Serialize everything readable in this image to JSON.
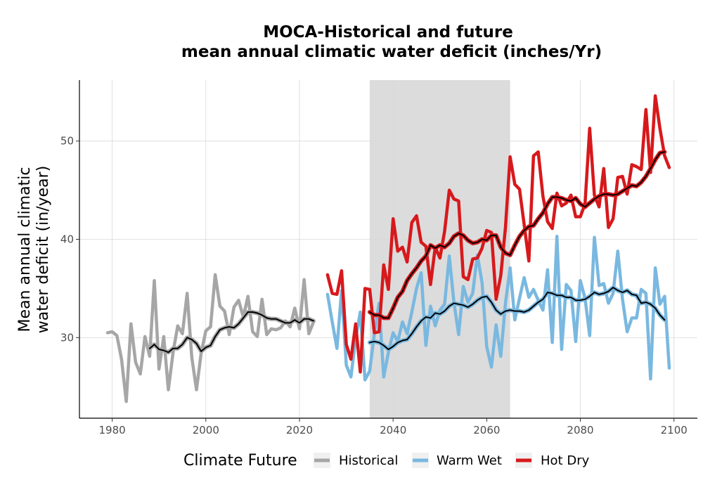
{
  "chart_data": {
    "type": "line",
    "title": "MOCA-Historical and future",
    "subtitle": "mean annual climatic water deficit (inches/Yr)",
    "xlabel": "",
    "ylabel_line1": "Mean annual climatic",
    "ylabel_line2": "water deficit (in/year)",
    "xlim": [
      1973,
      2105
    ],
    "ylim": [
      21.8,
      56.2
    ],
    "x_ticks": [
      1980,
      2000,
      2020,
      2040,
      2060,
      2080,
      2100
    ],
    "y_ticks": [
      30,
      40,
      50
    ],
    "grid": true,
    "shaded_period": [
      2035,
      2065
    ],
    "shaded_color": "#dcdcdc",
    "legend": {
      "title": "Climate Future",
      "position": "bottom",
      "entries": [
        "Historical",
        "Warm Wet",
        "Hot Dry"
      ]
    },
    "series": [
      {
        "name": "Historical",
        "color": "#a6a6a6",
        "x_start": 1979,
        "values": [
          30.5,
          30.6,
          30.2,
          27.8,
          23.5,
          31.4,
          27.5,
          26.3,
          30.1,
          28.1,
          35.8,
          26.8,
          30.1,
          24.7,
          28.5,
          31.2,
          30.4,
          34.5,
          28.0,
          24.7,
          28.4,
          30.7,
          31.1,
          36.4,
          33.2,
          32.7,
          30.3,
          33.1,
          33.8,
          32.1,
          34.2,
          30.6,
          30.1,
          33.9,
          30.3,
          30.9,
          30.8,
          31.0,
          31.7,
          31.1,
          33.0,
          30.9,
          35.9,
          30.4,
          31.6
        ]
      },
      {
        "name": "Historical (smoothed)",
        "color": "#000000",
        "x_start": 1988,
        "values": [
          28.9,
          29.3,
          28.8,
          28.7,
          28.5,
          28.9,
          28.9,
          29.3,
          30.0,
          29.8,
          29.4,
          28.6,
          29.0,
          29.2,
          30.1,
          30.8,
          31.0,
          31.1,
          31.0,
          31.4,
          32.0,
          32.6,
          32.6,
          32.5,
          32.3,
          32.0,
          31.9,
          31.9,
          31.7,
          31.5,
          31.5,
          31.8,
          31.5,
          31.9,
          31.9,
          31.7
        ]
      },
      {
        "name": "Warm Wet",
        "color": "#79b8e0",
        "x_start": 2026,
        "values": [
          34.4,
          31.6,
          28.9,
          34.8,
          27.2,
          26.0,
          29.9,
          32.6,
          25.7,
          26.6,
          30.4,
          33.5,
          26.0,
          28.5,
          30.5,
          29.6,
          31.6,
          30.4,
          32.6,
          35.0,
          36.6,
          29.2,
          33.2,
          31.2,
          32.8,
          33.4,
          38.3,
          33.6,
          30.3,
          35.2,
          33.6,
          34.5,
          38.4,
          35.6,
          29.1,
          27.0,
          31.3,
          28.1,
          33.5,
          37.1,
          31.8,
          34.0,
          36.1,
          34.1,
          34.9,
          33.8,
          32.8,
          36.9,
          29.5,
          40.3,
          28.8,
          35.4,
          34.8,
          29.6,
          35.8,
          34.0,
          30.2,
          40.2,
          35.3,
          35.5,
          33.5,
          34.5,
          38.8,
          33.9,
          30.6,
          32.0,
          32.0,
          34.9,
          34.5,
          25.8,
          37.1,
          33.4,
          34.2,
          26.9
        ]
      },
      {
        "name": "Warm Wet (smoothed)",
        "color": "#000000",
        "x_start": 2035,
        "values": [
          29.5,
          29.6,
          29.5,
          29.2,
          28.8,
          29.1,
          29.5,
          29.7,
          29.8,
          30.4,
          31.1,
          31.7,
          32.1,
          32.0,
          32.5,
          32.4,
          32.7,
          33.2,
          33.5,
          33.4,
          33.3,
          33.1,
          33.4,
          33.8,
          34.1,
          34.2,
          33.6,
          32.8,
          32.4,
          32.7,
          32.8,
          32.7,
          32.7,
          32.6,
          32.8,
          33.2,
          33.6,
          33.9,
          34.6,
          34.5,
          34.3,
          34.3,
          34.1,
          34.1,
          33.8,
          33.8,
          33.9,
          34.2,
          34.6,
          34.4,
          34.5,
          34.7,
          35.1,
          34.8,
          34.6,
          34.8,
          34.4,
          34.3,
          33.5,
          33.6,
          33.4,
          33.0,
          32.3,
          31.8
        ]
      },
      {
        "name": "Hot Dry",
        "color": "#d7191c",
        "x_start": 2026,
        "values": [
          36.4,
          34.5,
          34.4,
          36.8,
          29.3,
          27.8,
          31.4,
          26.5,
          35.0,
          34.9,
          30.5,
          30.6,
          37.4,
          34.9,
          42.1,
          38.8,
          39.2,
          37.7,
          41.7,
          42.4,
          39.7,
          39.3,
          35.4,
          39.2,
          38.1,
          40.8,
          45.0,
          44.1,
          43.9,
          36.2,
          35.9,
          38.0,
          38.1,
          39.1,
          40.9,
          40.7,
          33.9,
          36.3,
          41.2,
          48.4,
          45.6,
          45.1,
          41.5,
          37.8,
          48.5,
          48.9,
          44.4,
          41.8,
          41.1,
          44.7,
          43.4,
          43.7,
          44.5,
          42.3,
          42.3,
          43.6,
          51.3,
          44.5,
          43.3,
          47.2,
          41.2,
          42.1,
          46.3,
          46.4,
          44.6,
          47.6,
          47.4,
          47.1,
          53.2,
          46.8,
          54.6,
          51.3,
          48.5,
          47.3
        ]
      },
      {
        "name": "Hot Dry (smoothed)",
        "color": "#000000",
        "x_start": 2035,
        "values": [
          32.6,
          32.3,
          32.3,
          32.0,
          32.0,
          33.0,
          34.1,
          34.7,
          35.8,
          36.5,
          37.1,
          37.8,
          38.3,
          39.4,
          39.1,
          39.4,
          39.2,
          39.6,
          40.3,
          40.6,
          40.4,
          39.9,
          39.6,
          39.7,
          40.0,
          39.9,
          40.4,
          40.4,
          39.2,
          38.6,
          38.4,
          39.4,
          40.3,
          40.9,
          41.3,
          41.4,
          42.1,
          42.7,
          43.6,
          44.3,
          44.3,
          44.2,
          44.0,
          43.9,
          44.2,
          43.6,
          43.3,
          43.7,
          44.1,
          44.4,
          44.6,
          44.6,
          44.5,
          44.6,
          44.9,
          45.2,
          45.5,
          45.4,
          45.8,
          46.4,
          47.2,
          48.1,
          48.8,
          48.9
        ]
      }
    ]
  }
}
